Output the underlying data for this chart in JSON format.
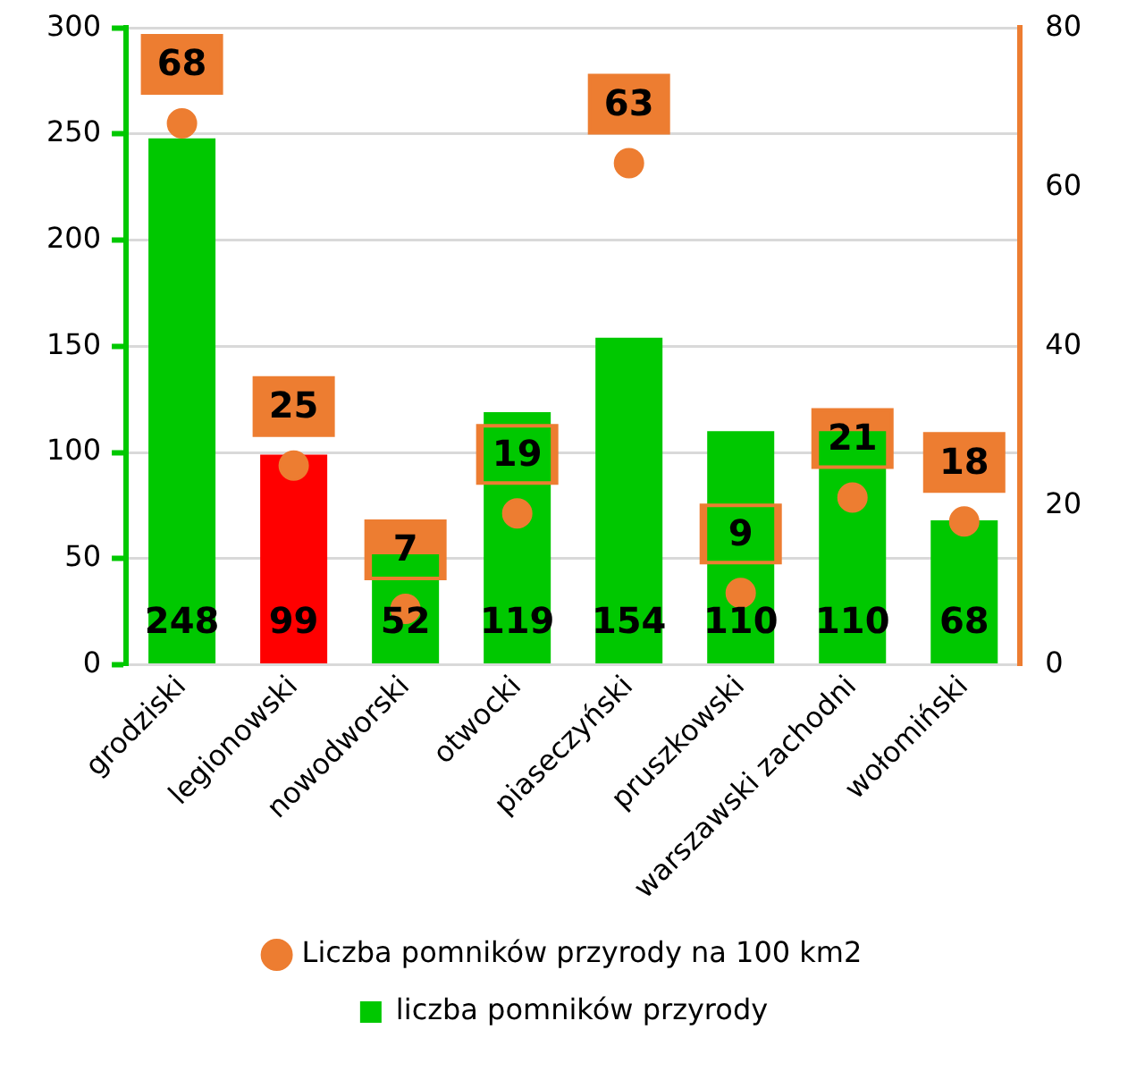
{
  "chart_data": {
    "type": "bar",
    "categories": [
      "grodziski",
      "legionowski",
      "nowodworski",
      "otwocki",
      "piaseczyński",
      "pruszkowski",
      "warszawski zachodni",
      "wołomiński"
    ],
    "series": [
      {
        "name": "liczba pomników przyrody",
        "color": "#00c800",
        "colors": [
          "#00c800",
          "#ff0000",
          "#00c800",
          "#00c800",
          "#00c800",
          "#00c800",
          "#00c800",
          "#00c800"
        ],
        "values": [
          248,
          99,
          52,
          119,
          154,
          110,
          110,
          68
        ]
      },
      {
        "name": "Liczba pomników przyrody na 100 km2",
        "type": "scatter",
        "axis": "y2",
        "color": "#ed7d31",
        "marker": "circle",
        "values": [
          68,
          25,
          7,
          19,
          63,
          9,
          21,
          18
        ]
      }
    ],
    "ylim": [
      0,
      300
    ],
    "yticks": [
      0,
      50,
      100,
      150,
      200,
      250,
      300
    ],
    "y2lim": [
      0,
      80
    ],
    "y2ticks": [
      0,
      20,
      40,
      60,
      80
    ],
    "grid": "y",
    "legend": "bottom",
    "data_labels": true
  }
}
